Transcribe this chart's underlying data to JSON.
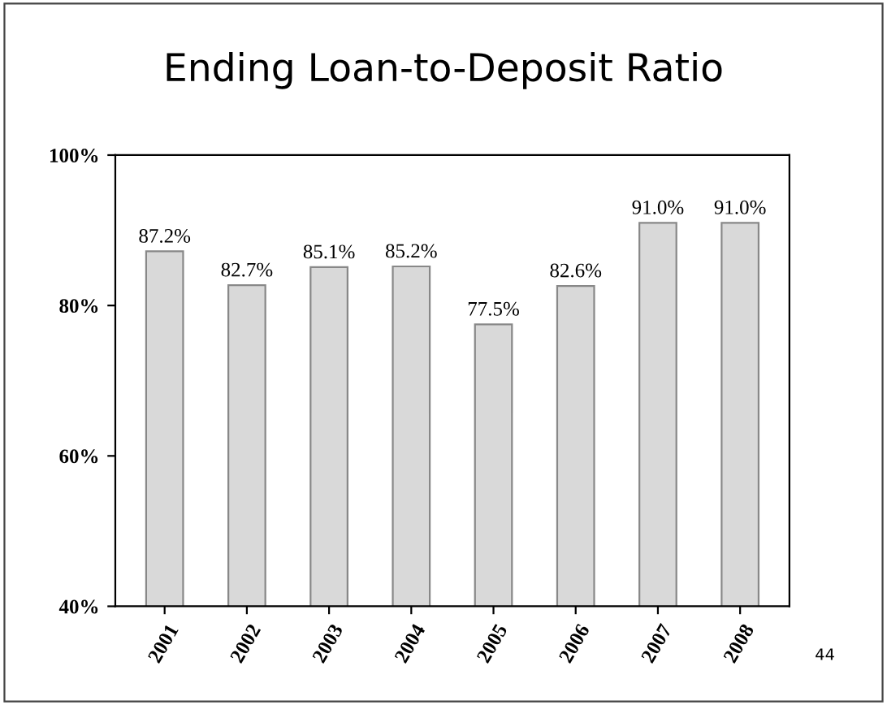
{
  "chart_data": {
    "type": "bar",
    "title": "Ending Loan-to-Deposit Ratio",
    "categories": [
      "2001",
      "2002",
      "2003",
      "2004",
      "2005",
      "2006",
      "2007",
      "2008"
    ],
    "values": [
      87.2,
      82.7,
      85.1,
      85.2,
      77.5,
      82.6,
      91.0,
      91.0
    ],
    "value_labels": [
      "87.2%",
      "82.7%",
      "85.1%",
      "85.2%",
      "77.5%",
      "82.6%",
      "91.0%",
      "91.0%"
    ],
    "color": "#d9d9d9",
    "ylim": [
      40,
      100
    ],
    "yticks": [
      {
        "value": 40,
        "label": "40%"
      },
      {
        "value": 60,
        "label": "60%"
      },
      {
        "value": 80,
        "label": "80%"
      },
      {
        "value": 100,
        "label": "100%"
      }
    ],
    "grid": false,
    "annotations": [
      "44"
    ]
  }
}
